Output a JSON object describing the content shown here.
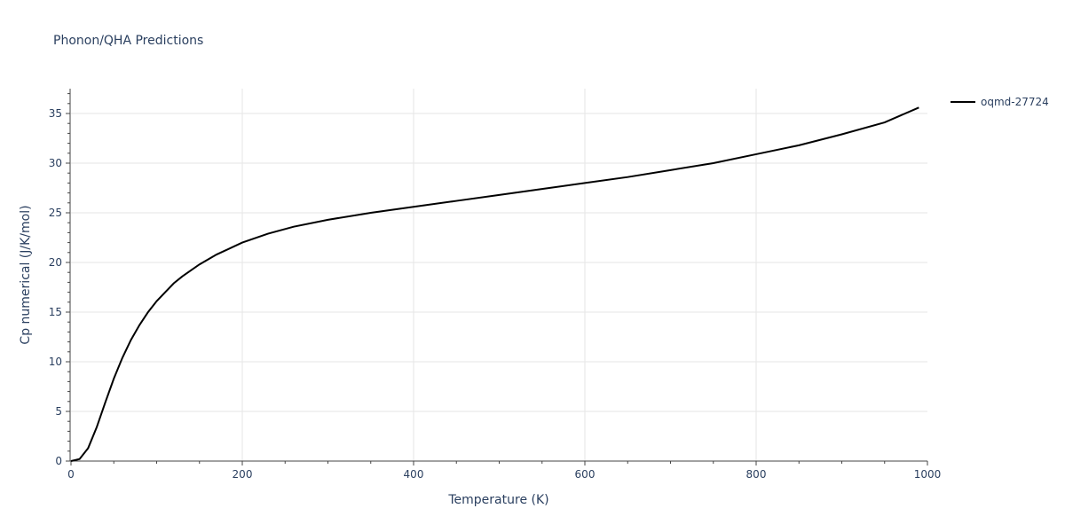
{
  "chart_data": {
    "type": "line",
    "title": "Phonon/QHA Predictions",
    "xlabel": "Temperature (K)",
    "ylabel": "Cp numerical (J/K/mol)",
    "xlim": [
      0,
      1000
    ],
    "ylim": [
      0,
      37.5
    ],
    "xticks": [
      0,
      200,
      400,
      600,
      800,
      1000
    ],
    "yticks": [
      0,
      5,
      10,
      15,
      20,
      25,
      30,
      35
    ],
    "grid": true,
    "legend_position": "top-right",
    "colors": {
      "line": "#000000",
      "grid": "#e5e5e5",
      "text": "#2a3f5f"
    },
    "series": [
      {
        "name": "oqmd-27724",
        "x": [
          0,
          10,
          20,
          30,
          40,
          50,
          60,
          70,
          80,
          90,
          100,
          110,
          120,
          130,
          140,
          150,
          160,
          170,
          180,
          190,
          200,
          230,
          260,
          300,
          350,
          400,
          450,
          500,
          550,
          600,
          650,
          700,
          750,
          800,
          850,
          900,
          950,
          990
        ],
        "y": [
          0,
          0.2,
          1.3,
          3.4,
          5.9,
          8.3,
          10.4,
          12.2,
          13.7,
          15.0,
          16.1,
          17.0,
          17.9,
          18.6,
          19.2,
          19.8,
          20.3,
          20.8,
          21.2,
          21.6,
          22.0,
          22.9,
          23.6,
          24.3,
          25.0,
          25.6,
          26.2,
          26.8,
          27.4,
          28.0,
          28.6,
          29.3,
          30.0,
          30.9,
          31.8,
          32.9,
          34.1,
          35.6
        ]
      }
    ]
  }
}
